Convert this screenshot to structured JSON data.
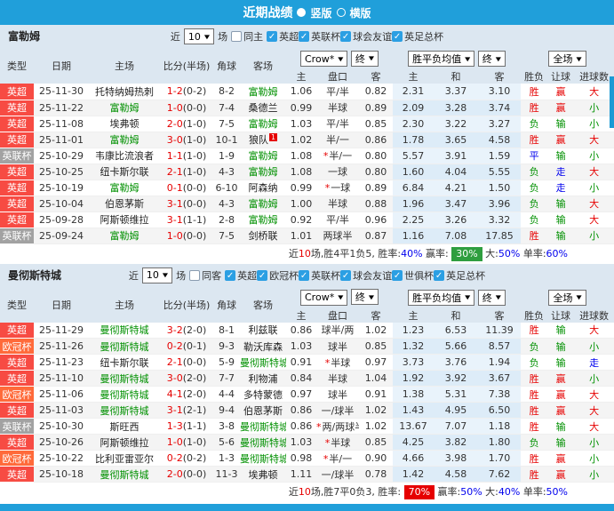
{
  "title": {
    "text": "近期战绩",
    "vertical": "竖版",
    "horizontal": "横版"
  },
  "controls": {
    "near": "近",
    "count": "10",
    "games": "场"
  },
  "selects": {
    "crow": "Crow*",
    "final": "终",
    "avg": "胜平负均值",
    "scope": "全场"
  },
  "columns": {
    "type": "类型",
    "date": "日期",
    "home": "主场",
    "score": "比分(半场)",
    "corners": "角球",
    "away": "客场",
    "odds_home": "主",
    "handicap": "盘口",
    "odds_away": "客",
    "avg_home": "主",
    "avg_draw": "和",
    "avg_away": "客",
    "outcome": "胜负",
    "let_ball": "让球",
    "goals": "进球数"
  },
  "colors": {
    "header_blue": "#209fda",
    "epl_red": "#f74b43",
    "efl_gray": "#a2a2a2",
    "ucl_orange": "#ff6a3a",
    "team_green": "#009000",
    "score_red": "#e60000",
    "push_blue": "#0000ee",
    "badge_green": "#2f9e3f",
    "badge_red": "#e60000"
  },
  "sections": [
    {
      "team": "富勒姆",
      "same_label": "同主",
      "leagues": [
        "英超",
        "英联杯",
        "球会友谊",
        "英足总杯"
      ],
      "rows": [
        {
          "lg": "英超",
          "lgc": "epl",
          "date": "25-11-30",
          "home": "托特纳姆热刺",
          "hsel": false,
          "score": "1-2",
          "ht": "(0-2)",
          "cor": "8-2",
          "away": "富勒姆",
          "asel": true,
          "o1": "1.06",
          "star": false,
          "hc": "平/半",
          "o2": "0.82",
          "a1": "2.31",
          "a2": "3.37",
          "a3": "3.10",
          "r1": "胜",
          "r2": "赢",
          "r3": "大"
        },
        {
          "lg": "英超",
          "lgc": "epl",
          "date": "25-11-22",
          "home": "富勒姆",
          "hsel": true,
          "score": "1-0",
          "ht": "(0-0)",
          "cor": "7-4",
          "away": "桑德兰",
          "asel": false,
          "o1": "0.99",
          "star": false,
          "hc": "半球",
          "o2": "0.89",
          "a1": "2.09",
          "a2": "3.28",
          "a3": "3.74",
          "r1": "胜",
          "r2": "赢",
          "r3": "小"
        },
        {
          "lg": "英超",
          "lgc": "epl",
          "date": "25-11-08",
          "home": "埃弗顿",
          "hsel": false,
          "score": "2-0",
          "ht": "(1-0)",
          "cor": "7-5",
          "away": "富勒姆",
          "asel": true,
          "o1": "1.03",
          "star": false,
          "hc": "平/半",
          "o2": "0.85",
          "a1": "2.30",
          "a2": "3.22",
          "a3": "3.27",
          "r1": "负",
          "r2": "输",
          "r3": "小"
        },
        {
          "lg": "英超",
          "lgc": "epl",
          "date": "25-11-01",
          "home": "富勒姆",
          "hsel": true,
          "score": "3-0",
          "ht": "(1-0)",
          "cor": "10-1",
          "away": "狼队",
          "asel": false,
          "asup": "1",
          "o1": "1.02",
          "star": false,
          "hc": "半/一",
          "o2": "0.86",
          "a1": "1.78",
          "a2": "3.65",
          "a3": "4.58",
          "r1": "胜",
          "r2": "赢",
          "r3": "大"
        },
        {
          "lg": "英联杯",
          "lgc": "efl",
          "date": "25-10-29",
          "home": "韦康比流浪者",
          "hsel": false,
          "score": "1-1",
          "ht": "(1-0)",
          "cor": "1-9",
          "away": "富勒姆",
          "asel": true,
          "o1": "1.08",
          "star": true,
          "hc": "半/一",
          "o2": "0.80",
          "a1": "5.57",
          "a2": "3.91",
          "a3": "1.59",
          "r1": "平",
          "r2": "输",
          "r3": "小"
        },
        {
          "lg": "英超",
          "lgc": "epl",
          "date": "25-10-25",
          "home": "纽卡斯尔联",
          "hsel": false,
          "score": "2-1",
          "ht": "(1-0)",
          "cor": "4-3",
          "away": "富勒姆",
          "asel": true,
          "o1": "1.08",
          "star": false,
          "hc": "一球",
          "o2": "0.80",
          "a1": "1.60",
          "a2": "4.04",
          "a3": "5.55",
          "r1": "负",
          "r2": "走",
          "r3": "大"
        },
        {
          "lg": "英超",
          "lgc": "epl",
          "date": "25-10-19",
          "home": "富勒姆",
          "hsel": true,
          "score": "0-1",
          "ht": "(0-0)",
          "cor": "6-10",
          "away": "阿森纳",
          "asel": false,
          "o1": "0.99",
          "star": true,
          "hc": "一球",
          "o2": "0.89",
          "a1": "6.84",
          "a2": "4.21",
          "a3": "1.50",
          "r1": "负",
          "r2": "走",
          "r3": "小"
        },
        {
          "lg": "英超",
          "lgc": "epl",
          "date": "25-10-04",
          "home": "伯恩茅斯",
          "hsel": false,
          "score": "3-1",
          "ht": "(0-0)",
          "cor": "4-3",
          "away": "富勒姆",
          "asel": true,
          "o1": "1.00",
          "star": false,
          "hc": "半球",
          "o2": "0.88",
          "a1": "1.96",
          "a2": "3.47",
          "a3": "3.96",
          "r1": "负",
          "r2": "输",
          "r3": "大"
        },
        {
          "lg": "英超",
          "lgc": "epl",
          "date": "25-09-28",
          "home": "阿斯顿维拉",
          "hsel": false,
          "score": "3-1",
          "ht": "(1-1)",
          "cor": "2-8",
          "away": "富勒姆",
          "asel": true,
          "o1": "0.92",
          "star": false,
          "hc": "平/半",
          "o2": "0.96",
          "a1": "2.25",
          "a2": "3.26",
          "a3": "3.32",
          "r1": "负",
          "r2": "输",
          "r3": "大"
        },
        {
          "lg": "英联杯",
          "lgc": "efl",
          "date": "25-09-24",
          "home": "富勒姆",
          "hsel": true,
          "score": "1-0",
          "ht": "(0-0)",
          "cor": "7-5",
          "away": "剑桥联",
          "asel": false,
          "o1": "1.01",
          "star": false,
          "hc": "两球半",
          "o2": "0.87",
          "a1": "1.16",
          "a2": "7.08",
          "a3": "17.85",
          "r1": "胜",
          "r2": "输",
          "r3": "小"
        }
      ],
      "summary": [
        {
          "t": "近"
        },
        {
          "t": "10",
          "c": "num"
        },
        {
          "t": "场,胜4平1负5, 胜率:"
        },
        {
          "t": "40%",
          "c": "v"
        },
        {
          "t": " 赢率: "
        },
        {
          "t": "30%",
          "c": "bdg green"
        },
        {
          "t": " 大:"
        },
        {
          "t": "50%",
          "c": "v"
        },
        {
          "t": " 单率:"
        },
        {
          "t": "60%",
          "c": "v"
        }
      ]
    },
    {
      "team": "曼彻斯特城",
      "same_label": "同客",
      "leagues": [
        "英超",
        "欧冠杯",
        "英联杯",
        "球会友谊",
        "世俱杯",
        "英足总杯"
      ],
      "rows": [
        {
          "lg": "英超",
          "lgc": "epl",
          "date": "25-11-29",
          "home": "曼彻斯特城",
          "hsel": true,
          "score": "3-2",
          "ht": "(2-0)",
          "cor": "8-1",
          "away": "利兹联",
          "asel": false,
          "o1": "0.86",
          "star": false,
          "hc": "球半/两",
          "o2": "1.02",
          "a1": "1.23",
          "a2": "6.53",
          "a3": "11.39",
          "r1": "胜",
          "r2": "输",
          "r3": "大"
        },
        {
          "lg": "欧冠杯",
          "lgc": "ucl",
          "date": "25-11-26",
          "home": "曼彻斯特城",
          "hsel": true,
          "score": "0-2",
          "ht": "(0-1)",
          "cor": "9-3",
          "away": "勒沃库森",
          "asel": false,
          "o1": "1.03",
          "star": false,
          "hc": "球半",
          "o2": "0.85",
          "a1": "1.32",
          "a2": "5.66",
          "a3": "8.57",
          "r1": "负",
          "r2": "输",
          "r3": "小"
        },
        {
          "lg": "英超",
          "lgc": "epl",
          "date": "25-11-23",
          "home": "纽卡斯尔联",
          "hsel": false,
          "score": "2-1",
          "ht": "(0-0)",
          "cor": "5-9",
          "away": "曼彻斯特城",
          "asel": true,
          "o1": "0.91",
          "star": true,
          "hc": "半球",
          "o2": "0.97",
          "a1": "3.73",
          "a2": "3.76",
          "a3": "1.94",
          "r1": "负",
          "r2": "输",
          "r3": "走"
        },
        {
          "lg": "英超",
          "lgc": "epl",
          "date": "25-11-10",
          "home": "曼彻斯特城",
          "hsel": true,
          "score": "3-0",
          "ht": "(2-0)",
          "cor": "7-7",
          "away": "利物浦",
          "asel": false,
          "o1": "0.84",
          "star": false,
          "hc": "半球",
          "o2": "1.04",
          "a1": "1.92",
          "a2": "3.92",
          "a3": "3.67",
          "r1": "胜",
          "r2": "赢",
          "r3": "小"
        },
        {
          "lg": "欧冠杯",
          "lgc": "ucl",
          "date": "25-11-06",
          "home": "曼彻斯特城",
          "hsel": true,
          "score": "4-1",
          "ht": "(2-0)",
          "cor": "4-4",
          "away": "多特蒙德",
          "asel": false,
          "o1": "0.97",
          "star": false,
          "hc": "球半",
          "o2": "0.91",
          "a1": "1.38",
          "a2": "5.31",
          "a3": "7.38",
          "r1": "胜",
          "r2": "赢",
          "r3": "大"
        },
        {
          "lg": "英超",
          "lgc": "epl",
          "date": "25-11-03",
          "home": "曼彻斯特城",
          "hsel": true,
          "score": "3-1",
          "ht": "(2-1)",
          "cor": "9-4",
          "away": "伯恩茅斯",
          "asel": false,
          "o1": "0.86",
          "star": false,
          "hc": "一/球半",
          "o2": "1.02",
          "a1": "1.43",
          "a2": "4.95",
          "a3": "6.50",
          "r1": "胜",
          "r2": "赢",
          "r3": "大"
        },
        {
          "lg": "英联杯",
          "lgc": "efl",
          "date": "25-10-30",
          "home": "斯旺西",
          "hsel": false,
          "score": "1-3",
          "ht": "(1-1)",
          "cor": "3-8",
          "away": "曼彻斯特城",
          "asel": true,
          "o1": "0.86",
          "star": true,
          "hc": "两/两球半",
          "o2": "1.02",
          "a1": "13.67",
          "a2": "7.07",
          "a3": "1.18",
          "r1": "胜",
          "r2": "输",
          "r3": "大"
        },
        {
          "lg": "英超",
          "lgc": "epl",
          "date": "25-10-26",
          "home": "阿斯顿维拉",
          "hsel": false,
          "score": "1-0",
          "ht": "(1-0)",
          "cor": "5-6",
          "away": "曼彻斯特城",
          "asel": true,
          "o1": "1.03",
          "star": true,
          "hc": "半球",
          "o2": "0.85",
          "a1": "4.25",
          "a2": "3.82",
          "a3": "1.80",
          "r1": "负",
          "r2": "输",
          "r3": "小"
        },
        {
          "lg": "欧冠杯",
          "lgc": "ucl",
          "date": "25-10-22",
          "home": "比利亚雷亚尔",
          "hsel": false,
          "score": "0-2",
          "ht": "(0-2)",
          "cor": "1-3",
          "away": "曼彻斯特城",
          "asel": true,
          "o1": "0.98",
          "star": true,
          "hc": "半/一",
          "o2": "0.90",
          "a1": "4.66",
          "a2": "3.98",
          "a3": "1.70",
          "r1": "胜",
          "r2": "赢",
          "r3": "小"
        },
        {
          "lg": "英超",
          "lgc": "epl",
          "date": "25-10-18",
          "home": "曼彻斯特城",
          "hsel": true,
          "score": "2-0",
          "ht": "(0-0)",
          "cor": "11-3",
          "away": "埃弗顿",
          "asel": false,
          "o1": "1.11",
          "star": false,
          "hc": "一/球半",
          "o2": "0.78",
          "a1": "1.42",
          "a2": "4.58",
          "a3": "7.62",
          "r1": "胜",
          "r2": "赢",
          "r3": "小"
        }
      ],
      "summary": [
        {
          "t": "近"
        },
        {
          "t": "10",
          "c": "num"
        },
        {
          "t": "场,胜7平0负3, 胜率: "
        },
        {
          "t": "70%",
          "c": "bdg red"
        },
        {
          "t": " 赢率:"
        },
        {
          "t": "50%",
          "c": "v"
        },
        {
          "t": " 大:"
        },
        {
          "t": "40%",
          "c": "v"
        },
        {
          "t": " 单率:"
        },
        {
          "t": "50%",
          "c": "v"
        }
      ]
    }
  ]
}
